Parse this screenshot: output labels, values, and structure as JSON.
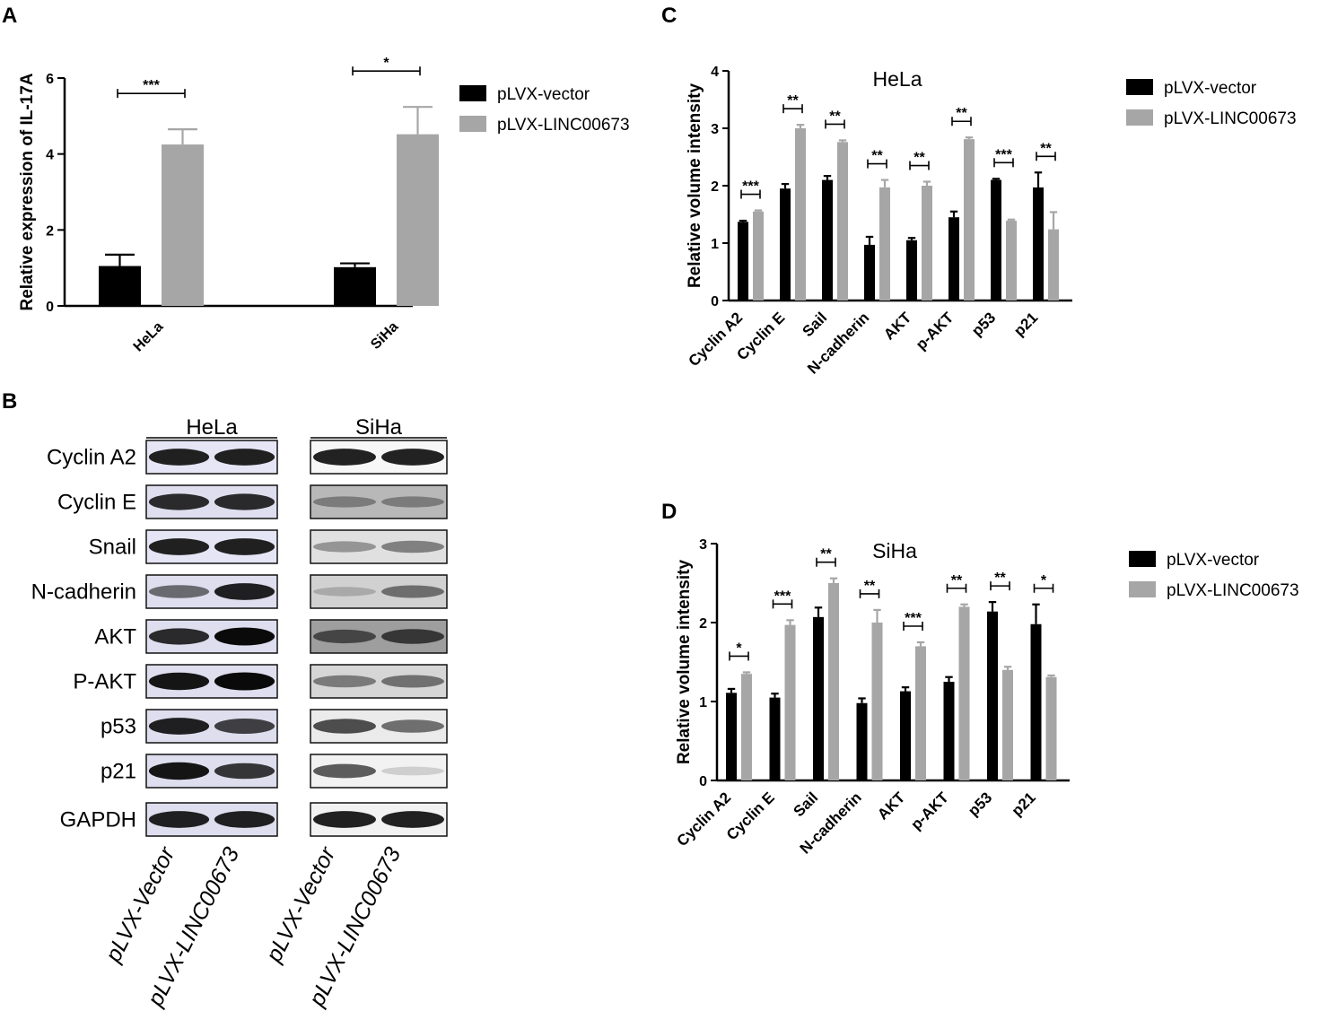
{
  "panels": {
    "a": "A",
    "b": "B",
    "c": "C",
    "d": "D"
  },
  "legend": {
    "series1": "pLVX-vector",
    "series2": "pLVX-LINC00673"
  },
  "colors": {
    "series1": "#000000",
    "series2": "#a6a6a6",
    "axis": "#000000"
  },
  "chart_data": [
    {
      "id": "A",
      "type": "bar",
      "title": "",
      "ylabel": "Relative expression of IL-17A",
      "xlabel": "",
      "ylim": [
        0,
        6
      ],
      "yticks": [
        "0",
        "2",
        "4",
        "6"
      ],
      "categories": [
        "HeLa",
        "SiHa"
      ],
      "series": [
        {
          "name": "pLVX-vector",
          "values": [
            1.05,
            1.02
          ],
          "errors": [
            0.3,
            0.1
          ]
        },
        {
          "name": "pLVX-LINC00673",
          "values": [
            4.25,
            4.52
          ],
          "errors": [
            0.4,
            0.72
          ]
        }
      ],
      "significance": [
        "***",
        "*"
      ],
      "legend_position": "top-right"
    },
    {
      "id": "C",
      "type": "bar",
      "title": "HeLa",
      "ylabel": "Relative volume intensity",
      "xlabel": "",
      "ylim": [
        0,
        4
      ],
      "yticks": [
        "0",
        "1",
        "2",
        "3",
        "4"
      ],
      "categories": [
        "Cyclin A2",
        "Cyclin E",
        "Sail",
        "N-cadherin",
        "AKT",
        "p-AKT",
        "p53",
        "p21"
      ],
      "series": [
        {
          "name": "pLVX-vector",
          "values": [
            1.37,
            1.95,
            2.1,
            0.97,
            1.05,
            1.45,
            2.1,
            1.97
          ],
          "errors": [
            0.02,
            0.08,
            0.07,
            0.14,
            0.04,
            0.1,
            0.02,
            0.26
          ]
        },
        {
          "name": "pLVX-LINC00673",
          "values": [
            1.55,
            3.0,
            2.76,
            1.97,
            2.0,
            2.81,
            1.39,
            1.24
          ],
          "errors": [
            0.02,
            0.06,
            0.03,
            0.13,
            0.07,
            0.03,
            0.02,
            0.3
          ]
        }
      ],
      "significance": [
        "***",
        "**",
        "**",
        "**",
        "**",
        "**",
        "***",
        "**"
      ],
      "legend_position": "top-right"
    },
    {
      "id": "D",
      "type": "bar",
      "title": "SiHa",
      "ylabel": "Relative volume intensity",
      "xlabel": "",
      "ylim": [
        0,
        3
      ],
      "yticks": [
        "0",
        "1",
        "2",
        "3"
      ],
      "categories": [
        "Cyclin A2",
        "Cyclin E",
        "Sail",
        "N-cadherin",
        "AKT",
        "p-AKT",
        "p53",
        "p21"
      ],
      "series": [
        {
          "name": "pLVX-vector",
          "values": [
            1.11,
            1.05,
            2.07,
            0.98,
            1.13,
            1.25,
            2.14,
            1.98
          ],
          "errors": [
            0.05,
            0.05,
            0.12,
            0.06,
            0.05,
            0.06,
            0.12,
            0.25
          ]
        },
        {
          "name": "pLVX-LINC00673",
          "values": [
            1.35,
            1.97,
            2.5,
            2.0,
            1.7,
            2.2,
            1.4,
            1.31
          ],
          "errors": [
            0.02,
            0.06,
            0.06,
            0.16,
            0.05,
            0.03,
            0.04,
            0.02
          ]
        }
      ],
      "significance": [
        "*",
        "***",
        "**",
        "**",
        "***",
        "**",
        "**",
        "*"
      ],
      "legend_position": "top-right"
    }
  ],
  "western_blot": {
    "headers": [
      "HeLa",
      "SiHa"
    ],
    "proteins": [
      "Cyclin A2",
      "Cyclin E",
      "Snail",
      "N-cadherin",
      "AKT",
      "P-AKT",
      "p53",
      "p21",
      "GAPDH"
    ],
    "lanes": [
      "pLVX-Vector",
      "pLVX-LINC00673",
      "pLVX-Vector",
      "pLVX-LINC00673"
    ],
    "band_intensity": {
      "HeLa": [
        [
          0.9,
          0.9
        ],
        [
          0.85,
          0.85
        ],
        [
          0.9,
          0.9
        ],
        [
          0.55,
          0.9
        ],
        [
          0.85,
          1.0
        ],
        [
          0.95,
          1.0
        ],
        [
          0.9,
          0.75
        ],
        [
          0.95,
          0.8
        ],
        [
          0.9,
          0.9
        ]
      ],
      "SiHa": [
        [
          0.9,
          0.9
        ],
        [
          0.35,
          0.35
        ],
        [
          0.35,
          0.45
        ],
        [
          0.2,
          0.5
        ],
        [
          0.6,
          0.7
        ],
        [
          0.45,
          0.5
        ],
        [
          0.7,
          0.55
        ],
        [
          0.65,
          0.15
        ],
        [
          0.9,
          0.9
        ]
      ]
    },
    "membrane_gray": {
      "HeLa": [
        0.93,
        0.9,
        0.93,
        0.9,
        0.9,
        0.9,
        0.9,
        0.9,
        0.9
      ],
      "SiHa": [
        0.97,
        0.72,
        0.88,
        0.82,
        0.62,
        0.84,
        0.92,
        0.95,
        0.95
      ]
    }
  }
}
